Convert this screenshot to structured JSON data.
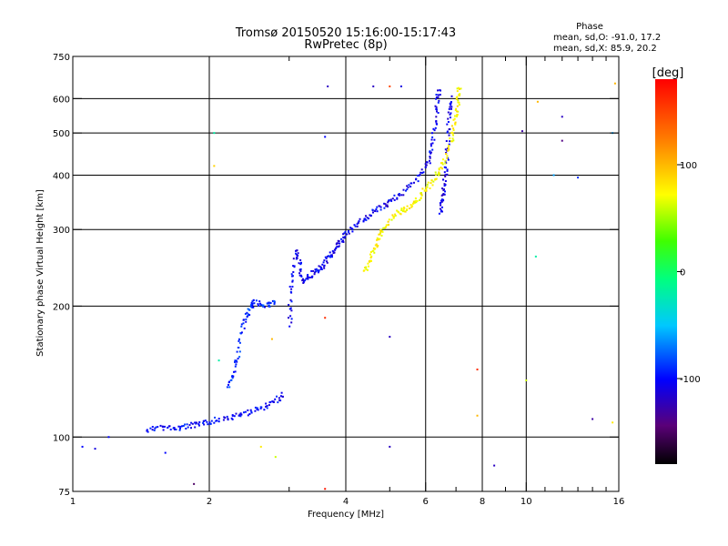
{
  "chart_data": {
    "type": "scatter",
    "title": "Tromsø 20150520 15:16:00-15:17:43",
    "subtitle": "RwPretec (8p)",
    "xlabel": "Frequency [MHz]",
    "ylabel": "Stationary phase Virtual Height [km]",
    "xscale": "log",
    "yscale": "log",
    "xlim": [
      1,
      16
    ],
    "ylim": [
      75,
      750
    ],
    "xticks": [
      1,
      2,
      4,
      6,
      8,
      10,
      16
    ],
    "xminorticks": [
      3,
      5,
      7,
      9,
      11,
      12,
      13,
      14,
      15
    ],
    "yticks": [
      75,
      100,
      200,
      300,
      400,
      500,
      600,
      750
    ],
    "ygrid": [
      100,
      200,
      300,
      400,
      500,
      600
    ],
    "xgrid": [
      2,
      4,
      6,
      8,
      10
    ],
    "grid": true,
    "stats": {
      "heading": "Phase",
      "line_o": "mean, sd,O: -91.0, 17.2",
      "line_x": "mean, sd,X:  85.9, 20.2"
    },
    "colorbar": {
      "label": "[deg]",
      "range": [
        -180,
        180
      ],
      "ticks": [
        100,
        0,
        -100
      ],
      "colormap": "rainbow"
    },
    "traces": [
      {
        "name": "",
        "phase": -100,
        "points": [
          [
            1.45,
            104
          ],
          [
            1.55,
            106
          ],
          [
            1.65,
            105
          ],
          [
            1.75,
            106
          ],
          [
            1.85,
            107
          ],
          [
            1.95,
            108
          ],
          [
            2.05,
            110
          ],
          [
            2.2,
            111
          ],
          [
            2.35,
            113
          ],
          [
            2.5,
            116
          ],
          [
            2.65,
            118
          ],
          [
            2.8,
            122
          ],
          [
            2.9,
            126
          ]
        ]
      },
      {
        "name": "",
        "phase": -90,
        "points": [
          [
            2.2,
            130
          ],
          [
            2.25,
            140
          ],
          [
            2.3,
            155
          ],
          [
            2.35,
            175
          ],
          [
            2.4,
            190
          ],
          [
            2.45,
            200
          ],
          [
            2.5,
            205
          ],
          [
            2.6,
            203
          ],
          [
            2.7,
            202
          ],
          [
            2.8,
            205
          ]
        ]
      },
      {
        "name": "",
        "phase": -105,
        "points": [
          [
            3.0,
            180
          ],
          [
            3.0,
            210
          ],
          [
            3.05,
            240
          ],
          [
            3.1,
            270
          ],
          [
            3.15,
            250
          ],
          [
            3.2,
            230
          ],
          [
            3.3,
            235
          ],
          [
            3.4,
            240
          ],
          [
            3.5,
            245
          ],
          [
            3.6,
            255
          ],
          [
            3.7,
            265
          ],
          [
            3.8,
            275
          ],
          [
            3.9,
            285
          ],
          [
            4.0,
            295
          ],
          [
            4.2,
            310
          ],
          [
            4.4,
            320
          ],
          [
            4.6,
            330
          ],
          [
            4.8,
            340
          ],
          [
            5.0,
            350
          ],
          [
            5.3,
            365
          ],
          [
            5.6,
            385
          ],
          [
            5.9,
            410
          ],
          [
            6.1,
            440
          ],
          [
            6.2,
            480
          ],
          [
            6.3,
            540
          ],
          [
            6.35,
            600
          ],
          [
            6.4,
            640
          ]
        ]
      },
      {
        "name": "",
        "phase": -110,
        "points": [
          [
            6.45,
            330
          ],
          [
            6.5,
            350
          ],
          [
            6.55,
            370
          ],
          [
            6.6,
            400
          ],
          [
            6.65,
            440
          ],
          [
            6.7,
            500
          ],
          [
            6.75,
            560
          ],
          [
            6.8,
            610
          ]
        ]
      },
      {
        "name": "",
        "phase": 75,
        "points": [
          [
            4.4,
            240
          ],
          [
            4.5,
            255
          ],
          [
            4.6,
            270
          ],
          [
            4.7,
            285
          ],
          [
            4.8,
            300
          ],
          [
            5.0,
            315
          ],
          [
            5.2,
            330
          ],
          [
            5.4,
            335
          ],
          [
            5.6,
            345
          ],
          [
            5.8,
            360
          ],
          [
            6.0,
            375
          ],
          [
            6.2,
            390
          ],
          [
            6.4,
            410
          ],
          [
            6.6,
            440
          ],
          [
            6.8,
            480
          ],
          [
            6.9,
            520
          ],
          [
            7.0,
            560
          ],
          [
            7.05,
            610
          ],
          [
            7.1,
            640
          ]
        ]
      }
    ],
    "scatter": [
      {
        "x": 3.65,
        "y": 640,
        "phase": -120
      },
      {
        "x": 4.6,
        "y": 640,
        "phase": -120
      },
      {
        "x": 5.0,
        "y": 640,
        "phase": 150
      },
      {
        "x": 5.3,
        "y": 640,
        "phase": -110
      },
      {
        "x": 3.6,
        "y": 490,
        "phase": -100
      },
      {
        "x": 9.8,
        "y": 505,
        "phase": -130
      },
      {
        "x": 12.0,
        "y": 545,
        "phase": -120
      },
      {
        "x": 12.0,
        "y": 480,
        "phase": -140
      },
      {
        "x": 13.0,
        "y": 395,
        "phase": -90
      },
      {
        "x": 10.5,
        "y": 260,
        "phase": -20
      },
      {
        "x": 15.5,
        "y": 500,
        "phase": -60
      },
      {
        "x": 5.0,
        "y": 170,
        "phase": -120
      },
      {
        "x": 7.8,
        "y": 143,
        "phase": 160
      },
      {
        "x": 3.6,
        "y": 188,
        "phase": 160
      },
      {
        "x": 10.0,
        "y": 135,
        "phase": 60
      },
      {
        "x": 14.0,
        "y": 110,
        "phase": -130
      },
      {
        "x": 15.5,
        "y": 108,
        "phase": 80
      },
      {
        "x": 5.0,
        "y": 95,
        "phase": -120
      },
      {
        "x": 2.6,
        "y": 95,
        "phase": 80
      },
      {
        "x": 2.8,
        "y": 90,
        "phase": 60
      },
      {
        "x": 8.5,
        "y": 86,
        "phase": -120
      },
      {
        "x": 1.85,
        "y": 78,
        "phase": -150
      },
      {
        "x": 3.6,
        "y": 76,
        "phase": 170
      },
      {
        "x": 7.8,
        "y": 112,
        "phase": 100
      },
      {
        "x": 1.05,
        "y": 95,
        "phase": -100
      },
      {
        "x": 1.12,
        "y": 94,
        "phase": -110
      },
      {
        "x": 1.2,
        "y": 100,
        "phase": -100
      },
      {
        "x": 1.6,
        "y": 92,
        "phase": -100
      },
      {
        "x": 2.05,
        "y": 420,
        "phase": 90
      },
      {
        "x": 2.05,
        "y": 500,
        "phase": -20
      },
      {
        "x": 15.7,
        "y": 650,
        "phase": 100
      },
      {
        "x": 10.6,
        "y": 590,
        "phase": 100
      },
      {
        "x": 11.5,
        "y": 400,
        "phase": -60
      },
      {
        "x": 2.1,
        "y": 150,
        "phase": -20
      },
      {
        "x": 2.75,
        "y": 168,
        "phase": 100
      }
    ]
  }
}
